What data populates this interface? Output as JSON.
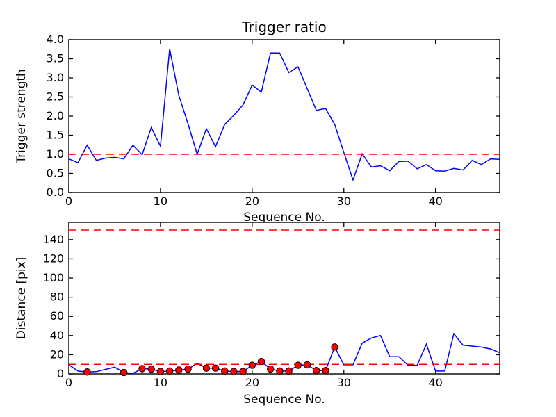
{
  "figure": {
    "title": "Trigger ratio",
    "background": "#ffffff",
    "colors": {
      "line": "#0000ff",
      "threshold": "#ff0000",
      "marker_fill": "#ff0000",
      "marker_edge": "#000000",
      "axis": "#000000",
      "text": "#000000"
    }
  },
  "chart_data": [
    {
      "type": "line",
      "title": "Trigger ratio",
      "xlabel": "Sequence No.",
      "ylabel": "Trigger strength",
      "xlim": [
        0,
        47
      ],
      "ylim": [
        0,
        4
      ],
      "grid": false,
      "legend": null,
      "xticks": [
        0,
        10,
        20,
        30,
        40
      ],
      "xtick_labels": [
        "0",
        "10",
        "20",
        "30",
        "40"
      ],
      "ytick_values": [
        0.0,
        0.5,
        1.0,
        1.5,
        2.0,
        2.5,
        3.0,
        3.5,
        4.0
      ],
      "ytick_labels": [
        "0.0",
        "0.5",
        "1.0",
        "1.5",
        "2.0",
        "2.5",
        "3.0",
        "3.5",
        "4.0"
      ],
      "thresholds": [
        1.0
      ],
      "x": [
        0,
        1,
        2,
        3,
        4,
        5,
        6,
        7,
        8,
        9,
        10,
        11,
        12,
        13,
        14,
        15,
        16,
        17,
        18,
        19,
        20,
        21,
        22,
        23,
        24,
        25,
        26,
        27,
        28,
        29,
        30,
        31,
        32,
        33,
        34,
        35,
        36,
        37,
        38,
        39,
        40,
        41,
        42,
        43,
        44,
        45,
        46,
        47
      ],
      "values": [
        0.88,
        0.78,
        1.24,
        0.84,
        0.9,
        0.92,
        0.88,
        1.24,
        0.99,
        1.7,
        1.21,
        3.76,
        2.54,
        1.8,
        1.0,
        1.67,
        1.2,
        1.78,
        2.02,
        2.29,
        2.81,
        2.63,
        3.65,
        3.65,
        3.14,
        3.29,
        2.72,
        2.15,
        2.2,
        1.78,
        1.05,
        0.33,
        1.01,
        0.67,
        0.7,
        0.57,
        0.81,
        0.82,
        0.62,
        0.73,
        0.57,
        0.56,
        0.63,
        0.59,
        0.84,
        0.73,
        0.88,
        0.87
      ],
      "marker_x": []
    },
    {
      "type": "line",
      "title": "",
      "xlabel": "Sequence No.",
      "ylabel": "Distance [pix]",
      "xlim": [
        0,
        47
      ],
      "ylim": [
        0,
        158
      ],
      "grid": false,
      "legend": null,
      "xticks": [
        0,
        10,
        20,
        30,
        40
      ],
      "xtick_labels": [
        "0",
        "10",
        "20",
        "30",
        "40"
      ],
      "ytick_values": [
        0,
        20,
        40,
        60,
        80,
        100,
        120,
        140
      ],
      "ytick_labels": [
        "0",
        "20",
        "40",
        "60",
        "80",
        "100",
        "120",
        "140"
      ],
      "thresholds": [
        150,
        10
      ],
      "x": [
        0,
        1,
        2,
        3,
        4,
        5,
        6,
        7,
        8,
        9,
        10,
        11,
        12,
        13,
        14,
        15,
        16,
        17,
        18,
        19,
        20,
        21,
        22,
        23,
        24,
        25,
        26,
        27,
        28,
        29,
        30,
        31,
        32,
        33,
        34,
        35,
        36,
        37,
        38,
        39,
        40,
        41,
        42,
        43,
        44,
        45,
        46,
        47
      ],
      "values": [
        9.5,
        3,
        2,
        2.3,
        4.7,
        7,
        1.5,
        0.6,
        5.5,
        5,
        2.5,
        3,
        4,
        5,
        11,
        6,
        6,
        3,
        2.5,
        2.5,
        9,
        13,
        5,
        3,
        3,
        9,
        9.5,
        3.5,
        3.5,
        28,
        9.5,
        9.5,
        32,
        37.5,
        40,
        18,
        18,
        9,
        9,
        31,
        3,
        3,
        42,
        30,
        29,
        28,
        26,
        22
      ],
      "marker_x": [
        2,
        6,
        8,
        9,
        10,
        11,
        12,
        13,
        15,
        16,
        17,
        18,
        19,
        20,
        21,
        22,
        23,
        24,
        25,
        26,
        27,
        28,
        29
      ]
    }
  ]
}
